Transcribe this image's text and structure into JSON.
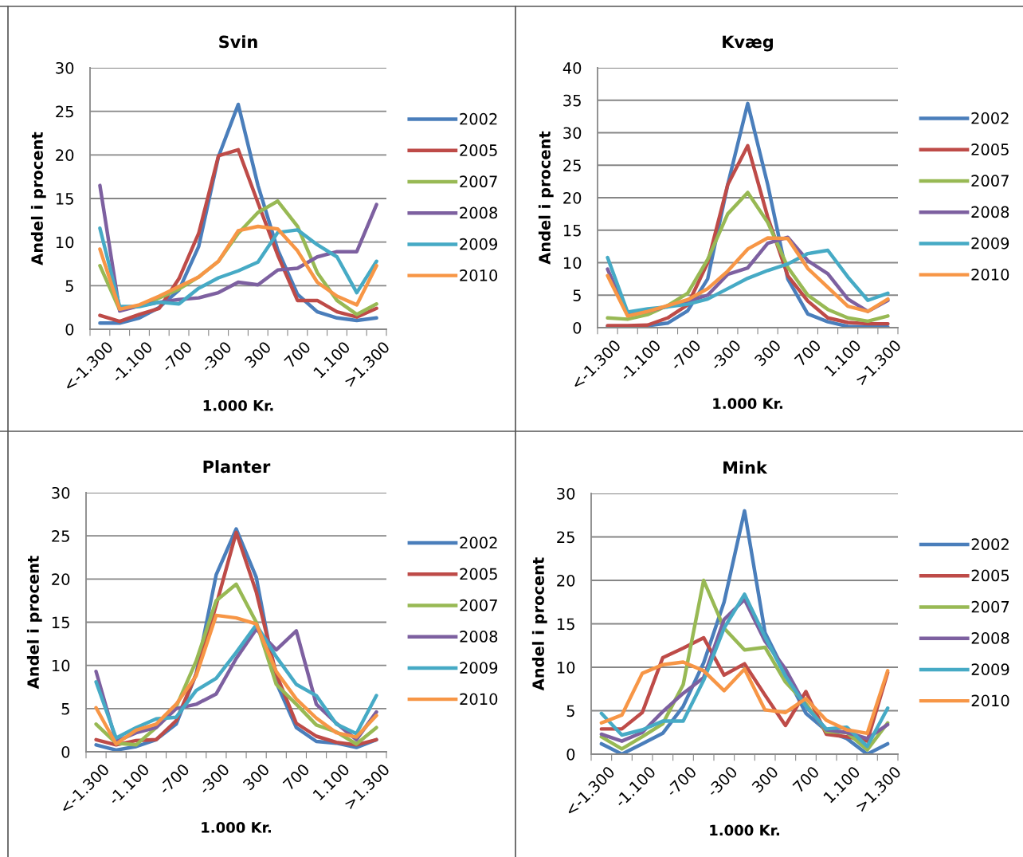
{
  "chart_data": [
    {
      "type": "line",
      "title": "Svin",
      "xlabel": "1.000 Kr.",
      "ylabel": "Andel i procent",
      "categories": [
        "<-1.300",
        null,
        "-1.100",
        null,
        "-700",
        null,
        "-300",
        null,
        "300",
        null,
        "700",
        null,
        "1.100",
        null,
        ">1.300"
      ],
      "ylim": [
        0,
        30
      ],
      "yticks": [
        0,
        5,
        10,
        15,
        20,
        25,
        30
      ],
      "grid": "y",
      "legend": "right",
      "marker": "none",
      "line_style": "solid",
      "series": [
        {
          "name": "2002",
          "color": "#4a7ebb",
          "values": [
            0.7,
            0.7,
            1.3,
            2.5,
            4.5,
            9.5,
            19.8,
            25.8,
            16.5,
            9.1,
            4.0,
            2.0,
            1.3,
            1.0,
            1.3
          ]
        },
        {
          "name": "2005",
          "color": "#be4b48",
          "values": [
            1.6,
            0.9,
            1.7,
            2.4,
            5.8,
            11.0,
            19.9,
            20.6,
            14.5,
            8.5,
            3.3,
            3.3,
            2.0,
            1.4,
            2.4
          ]
        },
        {
          "name": "2007",
          "color": "#98b954",
          "values": [
            7.3,
            2.2,
            2.7,
            3.6,
            4.6,
            6.0,
            7.8,
            11.0,
            13.4,
            14.7,
            11.8,
            6.5,
            3.3,
            1.7,
            2.9
          ]
        },
        {
          "name": "2008",
          "color": "#7d60a0",
          "values": [
            16.5,
            2.1,
            2.7,
            3.1,
            3.4,
            3.6,
            4.2,
            5.4,
            5.1,
            6.8,
            7.0,
            8.3,
            8.9,
            8.9,
            14.3
          ]
        },
        {
          "name": "2009",
          "color": "#46aac5",
          "values": [
            11.6,
            2.6,
            2.6,
            3.1,
            2.9,
            4.7,
            5.9,
            6.7,
            7.7,
            11.1,
            11.4,
            9.7,
            8.3,
            4.2,
            7.8
          ]
        },
        {
          "name": "2010",
          "color": "#f79646",
          "values": [
            9.2,
            2.3,
            2.8,
            3.8,
            4.9,
            6.0,
            7.8,
            11.3,
            11.8,
            11.5,
            9.0,
            5.4,
            3.8,
            2.8,
            7.3
          ]
        }
      ]
    },
    {
      "type": "line",
      "title": "Kvæg",
      "xlabel": "1.000 Kr.",
      "ylabel": "Andel i procent",
      "categories": [
        "<-1.300",
        null,
        "-1.100",
        null,
        "-700",
        null,
        "-300",
        null,
        "300",
        null,
        "700",
        null,
        "1.100",
        null,
        ">1.300"
      ],
      "ylim": [
        0,
        40
      ],
      "yticks": [
        0,
        5,
        10,
        15,
        20,
        25,
        30,
        35,
        40
      ],
      "grid": "y",
      "legend": "right",
      "marker": "none",
      "line_style": "solid",
      "series": [
        {
          "name": "2002",
          "color": "#4a7ebb",
          "values": [
            0.2,
            0.2,
            0.3,
            0.7,
            2.6,
            7.5,
            22.0,
            34.5,
            22.0,
            7.5,
            2.1,
            0.9,
            0.2,
            0.1,
            0.1
          ]
        },
        {
          "name": "2005",
          "color": "#be4b48",
          "values": [
            0.3,
            0.3,
            0.4,
            1.5,
            3.5,
            10.0,
            22.0,
            28.0,
            17.0,
            8.0,
            4.1,
            1.5,
            0.8,
            0.6,
            0.6
          ]
        },
        {
          "name": "2007",
          "color": "#98b954",
          "values": [
            1.5,
            1.3,
            2.0,
            3.4,
            5.3,
            10.5,
            17.5,
            20.8,
            16.2,
            9.3,
            5.0,
            2.8,
            1.5,
            1.0,
            1.8
          ]
        },
        {
          "name": "2008",
          "color": "#7d60a0",
          "values": [
            9.0,
            2.0,
            2.5,
            3.3,
            4.0,
            5.0,
            8.2,
            9.2,
            13.0,
            13.9,
            10.3,
            8.3,
            4.4,
            2.5,
            4.2
          ]
        },
        {
          "name": "2009",
          "color": "#46aac5",
          "values": [
            10.8,
            2.4,
            2.9,
            3.2,
            3.6,
            4.4,
            6.0,
            7.6,
            8.8,
            9.8,
            11.4,
            11.9,
            7.8,
            4.2,
            5.3
          ]
        },
        {
          "name": "2010",
          "color": "#f79646",
          "values": [
            8.0,
            1.8,
            2.5,
            3.4,
            4.3,
            6.0,
            8.7,
            12.1,
            13.8,
            13.7,
            9.1,
            6.2,
            3.3,
            2.5,
            4.4
          ]
        }
      ]
    },
    {
      "type": "line",
      "title": "Planter",
      "xlabel": "1.000 Kr.",
      "ylabel": "Andel i procent",
      "categories": [
        "<-1.300",
        null,
        "-1.100",
        null,
        "-700",
        null,
        "-300",
        null,
        "300",
        null,
        "700",
        null,
        "1.100",
        null,
        ">1.300"
      ],
      "ylim": [
        0,
        30
      ],
      "yticks": [
        0,
        5,
        10,
        15,
        20,
        25,
        30
      ],
      "grid": "y",
      "legend": "right",
      "marker": "none",
      "line_style": "solid",
      "series": [
        {
          "name": "2002",
          "color": "#4a7ebb",
          "values": [
            0.8,
            0.2,
            0.6,
            1.4,
            3.2,
            9.0,
            20.5,
            25.8,
            20.2,
            8.0,
            2.8,
            1.2,
            1.0,
            0.5,
            1.4
          ]
        },
        {
          "name": "2005",
          "color": "#be4b48",
          "values": [
            1.4,
            0.8,
            1.3,
            1.4,
            3.6,
            9.0,
            17.0,
            25.4,
            18.5,
            9.0,
            3.3,
            1.8,
            1.1,
            0.8,
            1.4
          ]
        },
        {
          "name": "2007",
          "color": "#98b954",
          "values": [
            3.2,
            1.0,
            0.8,
            2.8,
            5.2,
            10.5,
            17.5,
            19.4,
            15.0,
            7.8,
            5.5,
            3.1,
            2.3,
            0.9,
            2.8
          ]
        },
        {
          "name": "2008",
          "color": "#7d60a0",
          "values": [
            9.3,
            1.2,
            2.2,
            2.8,
            5.0,
            5.5,
            6.7,
            10.8,
            14.2,
            11.8,
            14.0,
            5.5,
            3.3,
            1.4,
            4.6
          ]
        },
        {
          "name": "2009",
          "color": "#46aac5",
          "values": [
            8.1,
            1.6,
            2.8,
            3.8,
            4.0,
            7.1,
            8.5,
            11.5,
            14.7,
            11.0,
            7.8,
            6.5,
            3.2,
            2.1,
            6.5
          ]
        },
        {
          "name": "2010",
          "color": "#f79646",
          "values": [
            5.1,
            0.9,
            2.5,
            3.2,
            5.5,
            8.8,
            15.8,
            15.5,
            14.8,
            9.3,
            6.1,
            3.9,
            2.2,
            1.7,
            4.2
          ]
        }
      ]
    },
    {
      "type": "line",
      "title": "Mink",
      "xlabel": "1.000 Kr.",
      "ylabel": "Andel i procent",
      "categories": [
        "<-1.300",
        null,
        "-1.100",
        null,
        "-700",
        null,
        "-300",
        null,
        "300",
        null,
        "700",
        null,
        "1.100",
        null,
        ">1.300"
      ],
      "ylim": [
        0,
        30
      ],
      "yticks": [
        0,
        5,
        10,
        15,
        20,
        25,
        30
      ],
      "grid": "y",
      "legend": "right",
      "marker": "none",
      "line_style": "solid",
      "series": [
        {
          "name": "2002",
          "color": "#4a7ebb",
          "values": [
            1.2,
            0.0,
            1.2,
            2.4,
            5.5,
            10.5,
            17.5,
            28.0,
            14.0,
            9.3,
            4.7,
            2.7,
            1.8,
            0.0,
            1.2
          ]
        },
        {
          "name": "2005",
          "color": "#be4b48",
          "values": [
            2.9,
            2.9,
            4.8,
            11.1,
            12.2,
            13.4,
            9.1,
            10.4,
            6.8,
            3.3,
            7.2,
            2.3,
            2.0,
            1.5,
            9.4
          ]
        },
        {
          "name": "2007",
          "color": "#98b954",
          "values": [
            2.0,
            0.6,
            2.0,
            3.5,
            8.0,
            20.0,
            14.5,
            12.0,
            12.3,
            8.3,
            5.8,
            2.6,
            2.5,
            0.5,
            3.6
          ]
        },
        {
          "name": "2008",
          "color": "#7d60a0",
          "values": [
            2.3,
            1.5,
            2.5,
            4.9,
            7.0,
            8.8,
            15.5,
            17.8,
            13.0,
            9.8,
            5.5,
            2.8,
            2.5,
            1.8,
            3.4
          ]
        },
        {
          "name": "2009",
          "color": "#46aac5",
          "values": [
            4.7,
            2.2,
            2.8,
            3.8,
            3.8,
            8.5,
            14.5,
            18.4,
            13.5,
            9.0,
            5.5,
            2.9,
            3.1,
            0.9,
            5.3
          ]
        },
        {
          "name": "2010",
          "color": "#f79646",
          "values": [
            3.6,
            4.5,
            9.3,
            10.3,
            10.6,
            9.6,
            7.3,
            9.8,
            5.1,
            4.8,
            6.4,
            3.9,
            2.8,
            2.4,
            9.6
          ]
        }
      ]
    }
  ]
}
